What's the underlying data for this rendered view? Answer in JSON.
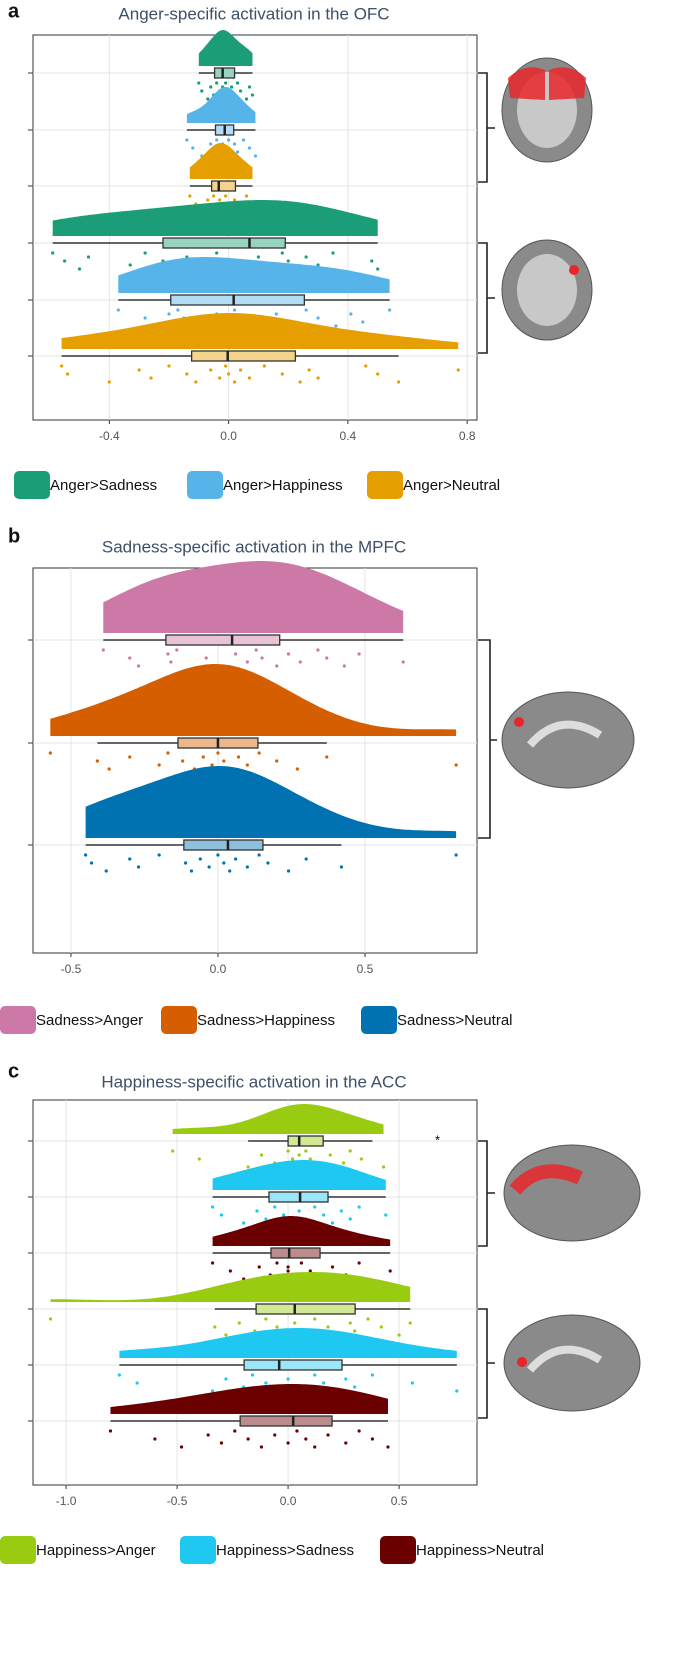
{
  "chart_data": [
    {
      "type": "raincloud",
      "label": "a",
      "title": "Anger-specific activation in the OFC",
      "series": [
        {
          "name": "Anger>Sadness",
          "color": "#1b9e77"
        },
        {
          "name": "Anger>Happiness",
          "color": "#56b4e9"
        },
        {
          "name": "Anger>Neutral",
          "color": "#e69f00"
        }
      ],
      "xlim": [
        -0.656,
        0.833
      ],
      "xticks": [
        -0.4,
        {
          "value": 0,
          "label": "0.0"
        },
        0.4,
        0.8
      ],
      "grid": true,
      "rows": [
        {
          "series": 0,
          "box": [
            -0.1,
            -0.047,
            -0.02,
            0.02,
            0.08
          ],
          "points": [
            -0.1,
            -0.09,
            -0.07,
            -0.06,
            -0.05,
            -0.04,
            -0.03,
            -0.03,
            -0.02,
            -0.02,
            -0.01,
            -0.01,
            0,
            0.01,
            0.02,
            0.03,
            0.04,
            0.06,
            0.07,
            0.08
          ]
        },
        {
          "series": 1,
          "box": [
            -0.14,
            -0.044,
            -0.013,
            0.017,
            0.09
          ],
          "points": [
            -0.14,
            -0.12,
            -0.09,
            -0.06,
            -0.05,
            -0.04,
            -0.03,
            -0.02,
            -0.02,
            -0.01,
            0,
            0,
            0.01,
            0.02,
            0.03,
            0.05,
            0.07,
            0.09
          ]
        },
        {
          "series": 2,
          "box": [
            -0.13,
            -0.057,
            -0.033,
            0.023,
            0.08
          ],
          "points": [
            -0.13,
            -0.11,
            -0.09,
            -0.07,
            -0.06,
            -0.05,
            -0.04,
            -0.03,
            -0.03,
            -0.02,
            -0.01,
            0,
            0.01,
            0.02,
            0.04,
            0.06,
            0.08
          ]
        },
        {
          "series": 0,
          "box": [
            -0.59,
            -0.22,
            0.07,
            0.19,
            0.5
          ],
          "points": [
            -0.59,
            -0.55,
            -0.5,
            -0.47,
            -0.33,
            -0.28,
            -0.22,
            -0.2,
            -0.14,
            -0.09,
            -0.04,
            0.02,
            0.06,
            0.1,
            0.14,
            0.18,
            0.2,
            0.23,
            0.26,
            0.3,
            0.35,
            0.48,
            0.5
          ]
        },
        {
          "series": 1,
          "box": [
            -0.37,
            -0.194,
            0.017,
            0.254,
            0.54
          ],
          "points": [
            -0.37,
            -0.28,
            -0.25,
            -0.2,
            -0.19,
            -0.17,
            -0.15,
            -0.08,
            -0.04,
            0,
            0.02,
            0.06,
            0.1,
            0.16,
            0.22,
            0.26,
            0.3,
            0.36,
            0.41,
            0.45,
            0.54
          ]
        },
        {
          "series": 2,
          "box": [
            -0.56,
            -0.124,
            -0.003,
            0.224,
            0.57
          ],
          "points": [
            -0.56,
            -0.54,
            -0.4,
            -0.3,
            -0.26,
            -0.2,
            -0.14,
            -0.11,
            -0.06,
            -0.03,
            -0.01,
            0,
            0.02,
            0.04,
            0.07,
            0.12,
            0.18,
            0.24,
            0.27,
            0.3,
            0.46,
            0.5,
            0.57,
            0.77
          ]
        }
      ]
    },
    {
      "type": "raincloud",
      "label": "b",
      "title": "Sadness-specific activation in the MPFC",
      "series": [
        {
          "name": "Sadness>Anger",
          "color": "#cc79a7"
        },
        {
          "name": "Sadness>Happiness",
          "color": "#d55e00"
        },
        {
          "name": "Sadness>Neutral",
          "color": "#0072b2"
        }
      ],
      "xlim": [
        -0.629,
        0.881
      ],
      "xticks": [
        -0.5,
        {
          "value": 0,
          "label": "0.0"
        },
        0.5
      ],
      "grid": true,
      "rows": [
        {
          "series": 0,
          "box": [
            -0.39,
            -0.177,
            0.048,
            0.21,
            0.63
          ],
          "points": [
            -0.39,
            -0.3,
            -0.27,
            -0.17,
            -0.16,
            -0.14,
            -0.04,
            -0.03,
            0.06,
            0.1,
            0.13,
            0.15,
            0.2,
            0.24,
            0.28,
            0.34,
            0.37,
            0.43,
            0.48,
            0.63
          ]
        },
        {
          "series": 1,
          "box": [
            -0.41,
            -0.136,
            0,
            0.136,
            0.37
          ],
          "points": [
            -0.57,
            -0.41,
            -0.37,
            -0.3,
            -0.2,
            -0.17,
            -0.12,
            -0.08,
            -0.05,
            -0.02,
            0,
            0.02,
            0.04,
            0.07,
            0.1,
            0.14,
            0.2,
            0.27,
            0.37,
            0.81
          ]
        },
        {
          "series": 2,
          "box": [
            -0.45,
            -0.116,
            0.034,
            0.153,
            0.42
          ],
          "points": [
            -0.45,
            -0.43,
            -0.38,
            -0.3,
            -0.27,
            -0.2,
            -0.11,
            -0.09,
            -0.06,
            -0.03,
            0,
            0.02,
            0.04,
            0.06,
            0.1,
            0.14,
            0.17,
            0.24,
            0.3,
            0.42,
            0.81
          ]
        }
      ]
    },
    {
      "type": "raincloud",
      "label": "c",
      "title": "Happiness-specific activation in the ACC",
      "annotation": "*",
      "series": [
        {
          "name": "Happiness>Anger",
          "color": "#99cc11"
        },
        {
          "name": "Happiness>Sadness",
          "color": "#1ec8f0"
        },
        {
          "name": "Happiness>Neutral",
          "color": "#6b0000"
        }
      ],
      "xlim": [
        -1.149,
        0.851
      ],
      "xticks": [
        {
          "value": -1,
          "label": "-1.0"
        },
        -0.5,
        {
          "value": 0,
          "label": "0.0"
        },
        0.5
      ],
      "grid": true,
      "rows": [
        {
          "series": 0,
          "box": [
            -0.18,
            0,
            0.05,
            0.158,
            0.38
          ],
          "points": [
            -0.52,
            -0.4,
            -0.18,
            -0.12,
            -0.06,
            0,
            0.02,
            0.04,
            0.05,
            0.06,
            0.08,
            0.1,
            0.14,
            0.19,
            0.25,
            0.28,
            0.33,
            0.43
          ]
        },
        {
          "series": 1,
          "box": [
            -0.34,
            -0.086,
            0.054,
            0.18,
            0.44
          ],
          "points": [
            -0.34,
            -0.3,
            -0.2,
            -0.14,
            -0.1,
            -0.06,
            -0.02,
            0.02,
            0.05,
            0.08,
            0.12,
            0.16,
            0.2,
            0.24,
            0.28,
            0.32,
            0.44
          ]
        },
        {
          "series": 2,
          "box": [
            -0.34,
            -0.077,
            0.005,
            0.144,
            0.46
          ],
          "points": [
            -0.34,
            -0.26,
            -0.2,
            -0.13,
            -0.08,
            -0.05,
            0,
            0,
            0,
            0.03,
            0.06,
            0.1,
            0.14,
            0.2,
            0.26,
            0.32,
            0.46
          ]
        },
        {
          "series": 0,
          "box": [
            -0.33,
            -0.144,
            0.03,
            0.302,
            0.55
          ],
          "points": [
            -1.07,
            -0.33,
            -0.28,
            -0.22,
            -0.15,
            -0.1,
            -0.05,
            0,
            0.03,
            0.08,
            0.12,
            0.18,
            0.22,
            0.28,
            0.3,
            0.36,
            0.42,
            0.5,
            0.55
          ]
        },
        {
          "series": 1,
          "box": [
            -0.76,
            -0.198,
            -0.04,
            0.243,
            0.76
          ],
          "points": [
            -0.76,
            -0.68,
            -0.34,
            -0.28,
            -0.2,
            -0.16,
            -0.1,
            -0.05,
            0,
            0.06,
            0.12,
            0.16,
            0.22,
            0.26,
            0.3,
            0.38,
            0.56,
            0.76
          ]
        },
        {
          "series": 2,
          "box": [
            -0.8,
            -0.216,
            0.023,
            0.198,
            0.45
          ],
          "points": [
            -0.8,
            -0.6,
            -0.48,
            -0.36,
            -0.3,
            -0.24,
            -0.18,
            -0.12,
            -0.06,
            0,
            0.04,
            0.08,
            0.12,
            0.18,
            0.26,
            0.32,
            0.38,
            0.45
          ]
        }
      ]
    }
  ]
}
